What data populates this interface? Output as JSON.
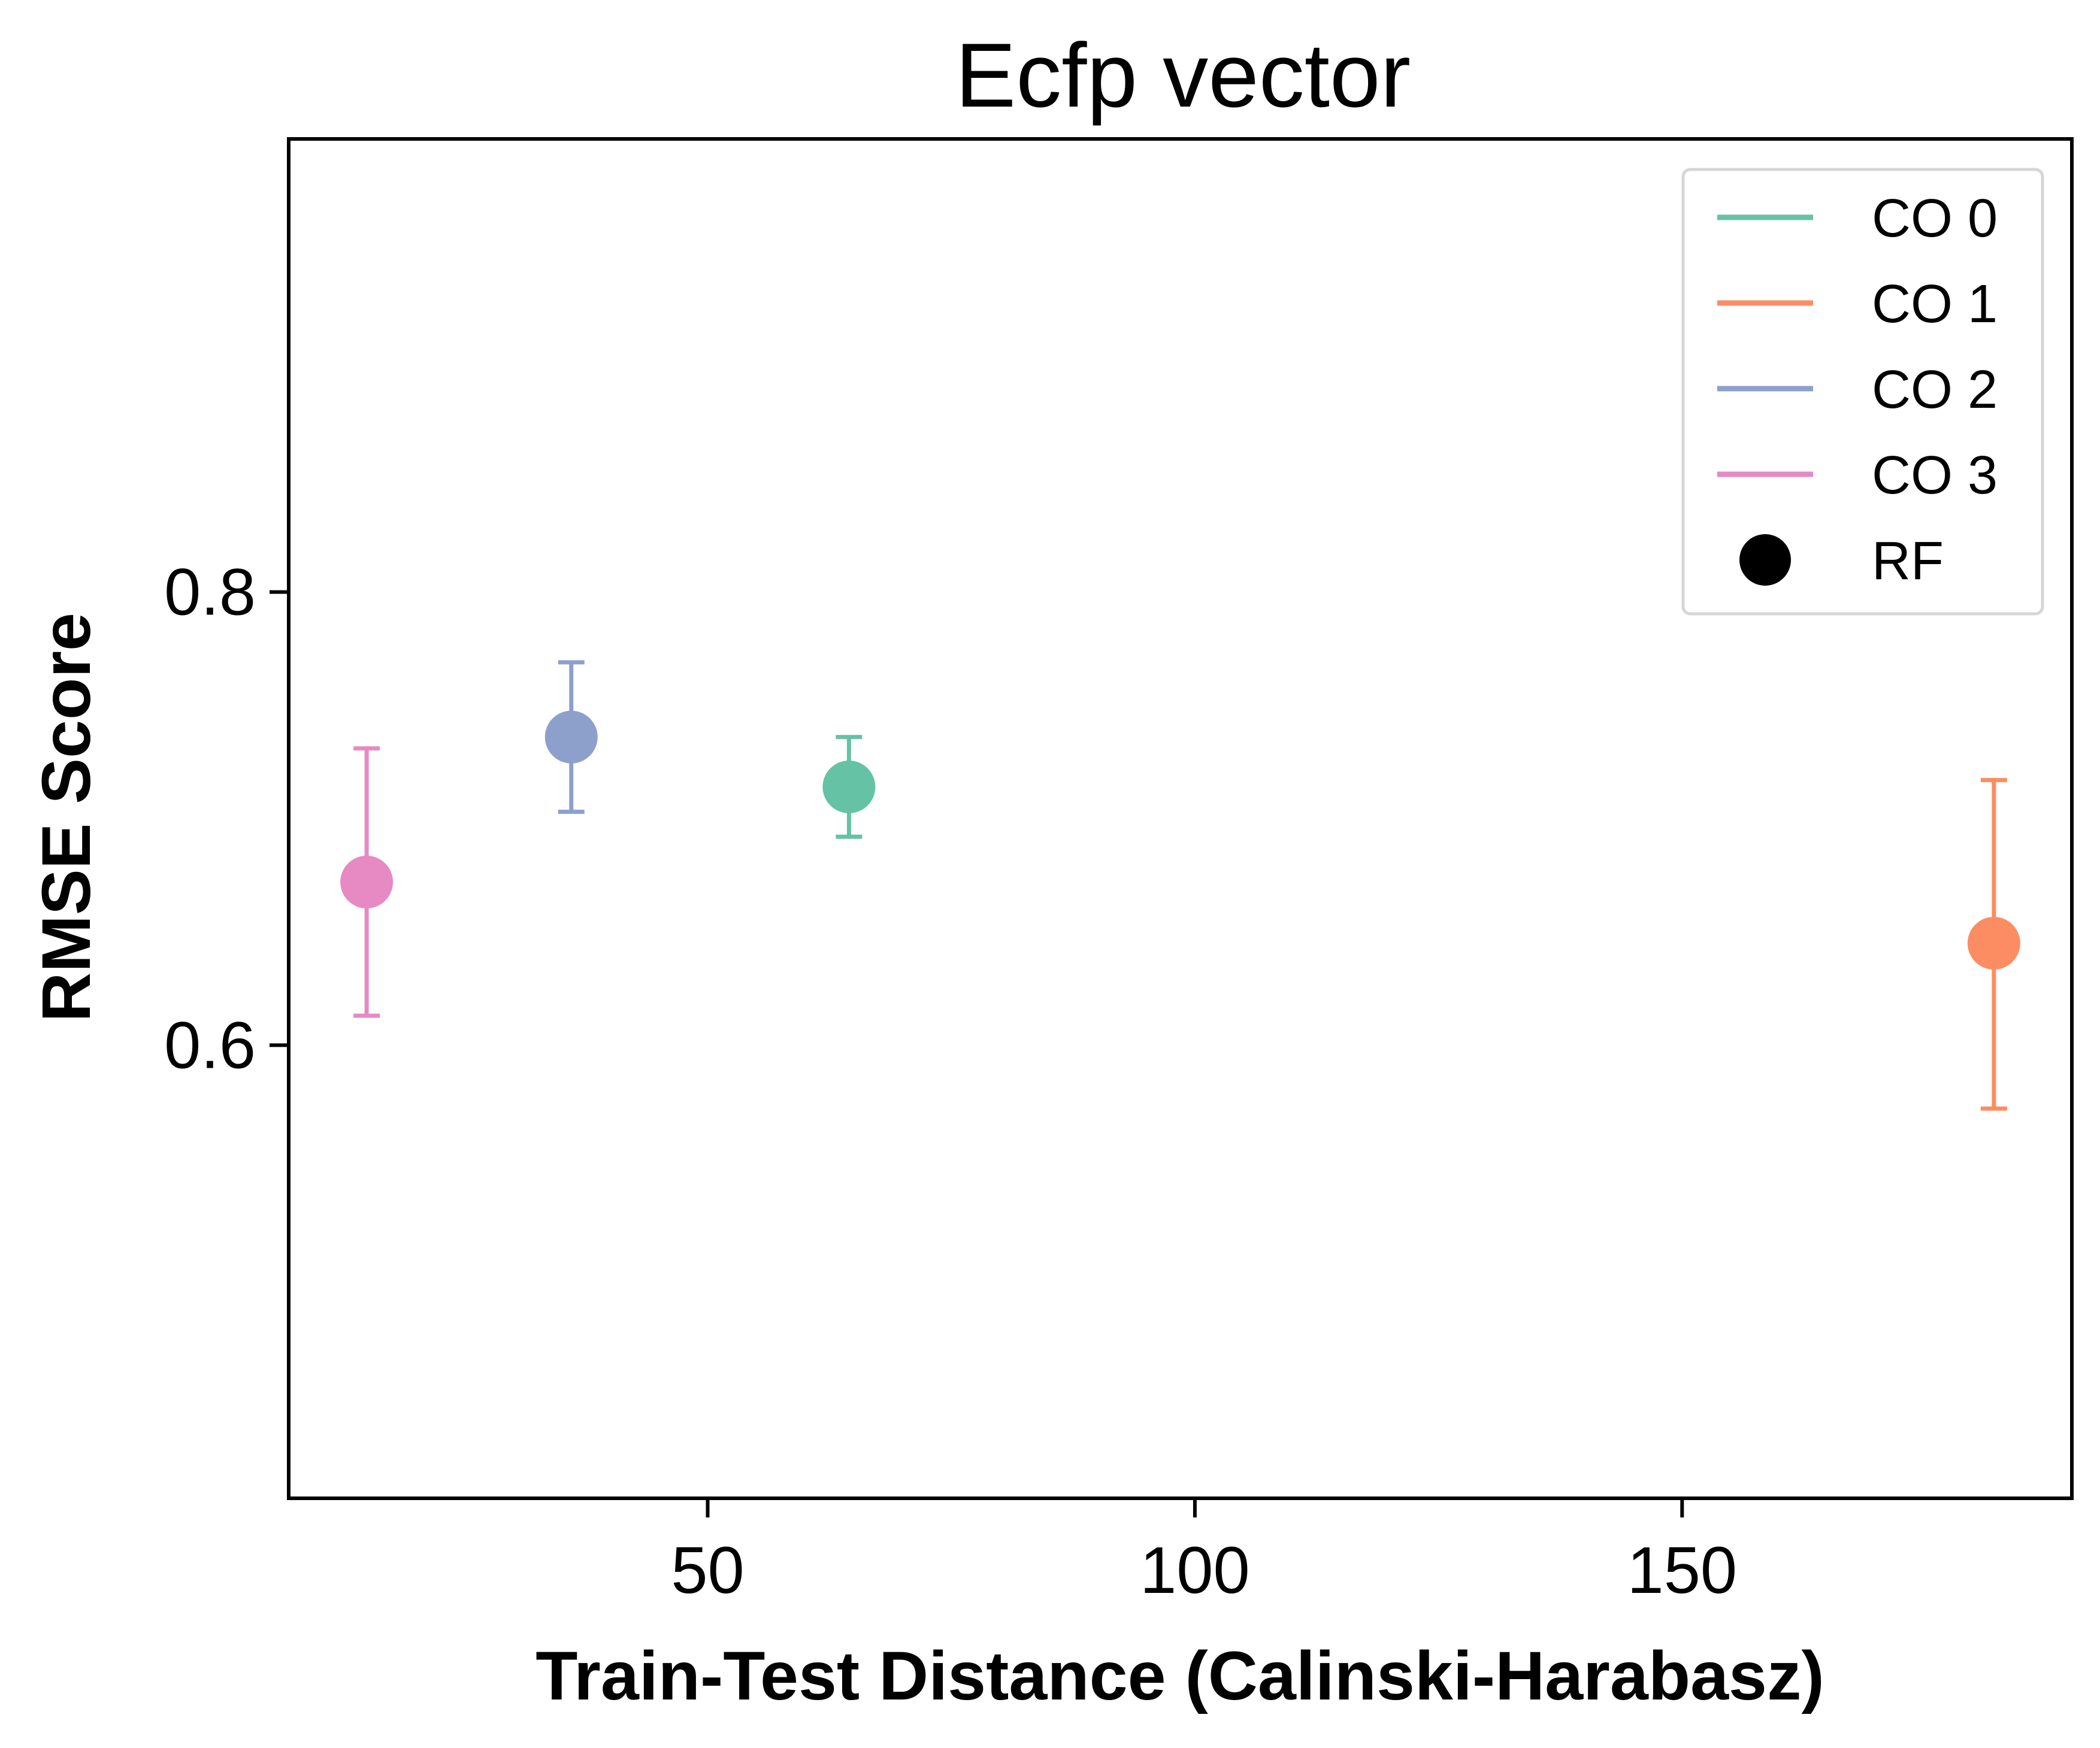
{
  "chart_data": {
    "type": "scatter",
    "title": "Ecfp vector",
    "xlabel": "Train-Test Distance (Calinski-Harabasz)",
    "ylabel": "RMSE Score",
    "xlim": [
      7,
      190
    ],
    "ylim": [
      0.4,
      1.0
    ],
    "xticks": [
      50,
      100,
      150
    ],
    "xtick_labels": [
      "50",
      "100",
      "150"
    ],
    "yticks": [
      0.6,
      0.8
    ],
    "ytick_labels": [
      "0.6",
      "0.8"
    ],
    "grid": false,
    "legend_position": "top-right",
    "legend": [
      {
        "label": "CO 0",
        "kind": "line",
        "color": "#66c2a5"
      },
      {
        "label": "CO 1",
        "kind": "line",
        "color": "#fc8d62"
      },
      {
        "label": "CO 2",
        "kind": "line",
        "color": "#8da0cb"
      },
      {
        "label": "CO 3",
        "kind": "line",
        "color": "#e78ac3"
      },
      {
        "label": "RF",
        "kind": "marker",
        "color": "#000000"
      }
    ],
    "series": [
      {
        "name": "CO 0",
        "model": "RF",
        "color": "#66c2a5",
        "x": 64.5,
        "y": 0.714,
        "err_low": 0.692,
        "err_high": 0.736
      },
      {
        "name": "CO 1",
        "model": "RF",
        "color": "#fc8d62",
        "x": 182,
        "y": 0.645,
        "err_low": 0.572,
        "err_high": 0.717
      },
      {
        "name": "CO 2",
        "model": "RF",
        "color": "#8da0cb",
        "x": 36,
        "y": 0.736,
        "err_low": 0.703,
        "err_high": 0.769
      },
      {
        "name": "CO 3",
        "model": "RF",
        "color": "#e78ac3",
        "x": 15,
        "y": 0.672,
        "err_low": 0.613,
        "err_high": 0.731
      }
    ]
  }
}
